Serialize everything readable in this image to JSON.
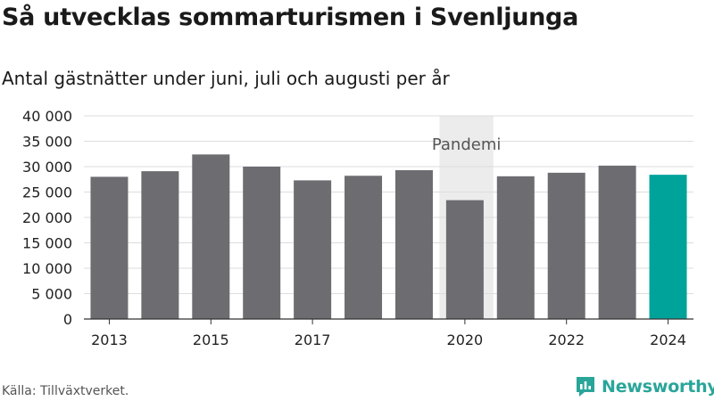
{
  "title": "Så utvecklas sommarturismen i Svenljunga",
  "subtitle": "Antal gästnätter under juni, juli och augusti per år",
  "source": "Källa: Tillväxtverket.",
  "brand": {
    "name": "Newsworthy",
    "color": "#2aa59a"
  },
  "chart_data": {
    "type": "bar",
    "categories": [
      "2013",
      "2014",
      "2015",
      "2016",
      "2017",
      "2018",
      "2019",
      "2020",
      "2021",
      "2022",
      "2023",
      "2024"
    ],
    "values": [
      28000,
      29100,
      32400,
      30000,
      27300,
      28200,
      29300,
      23400,
      28100,
      28800,
      30200,
      28400
    ],
    "x_tick_labels": [
      "2013",
      "",
      "2015",
      "",
      "2017",
      "",
      "",
      "2020",
      "",
      "2022",
      "",
      "2024"
    ],
    "ylim": [
      0,
      40000
    ],
    "y_ticks": [
      0,
      5000,
      10000,
      15000,
      20000,
      25000,
      30000,
      35000,
      40000
    ],
    "y_tick_labels": [
      "0",
      "5 000",
      "10 000",
      "15 000",
      "20 000",
      "25 000",
      "30 000",
      "35 000",
      "40 000"
    ],
    "bar_color": "#6d6c71",
    "highlight_color": "#00a39a",
    "highlight_index": 11,
    "grid": true,
    "annotation": {
      "label": "Pandemi",
      "from": "2020",
      "to": "2021",
      "color": "#ececec"
    }
  }
}
